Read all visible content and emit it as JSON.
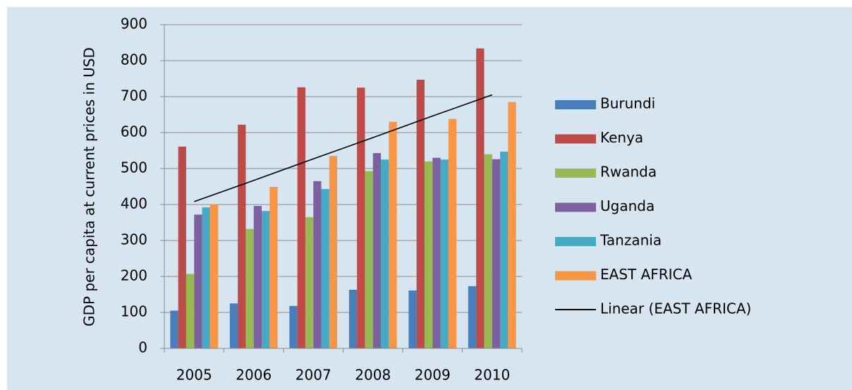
{
  "chart_data": {
    "type": "bar",
    "y_label": "GDP per capita at current prices in USD",
    "categories": [
      "2005",
      "2006",
      "2007",
      "2008",
      "2009",
      "2010"
    ],
    "series": [
      {
        "name": "Burundi",
        "color": "#4a7ebb",
        "values": [
          105,
          125,
          118,
          163,
          161,
          173
        ]
      },
      {
        "name": "Kenya",
        "color": "#be4b48",
        "values": [
          561,
          622,
          726,
          725,
          747,
          834
        ]
      },
      {
        "name": "Rwanda",
        "color": "#98b954",
        "values": [
          207,
          332,
          365,
          493,
          520,
          540
        ]
      },
      {
        "name": "Uganda",
        "color": "#7d60a0",
        "values": [
          372,
          396,
          465,
          543,
          530,
          526
        ]
      },
      {
        "name": "Tanzania",
        "color": "#46aac5",
        "values": [
          392,
          382,
          443,
          525,
          525,
          547
        ]
      },
      {
        "name": "EAST AFRICA",
        "color": "#f79646",
        "values": [
          401,
          449,
          535,
          630,
          638,
          685
        ]
      },
      {
        "name": "Linear (EAST AFRICA)",
        "color": "#000000",
        "type": "line",
        "values": [
          408,
          467,
          527,
          586,
          646,
          705
        ]
      }
    ],
    "ylim": [
      0,
      900
    ],
    "yticks": [
      0,
      100,
      200,
      300,
      400,
      500,
      600,
      700,
      800,
      900
    ],
    "grid": true,
    "legend": "right"
  }
}
